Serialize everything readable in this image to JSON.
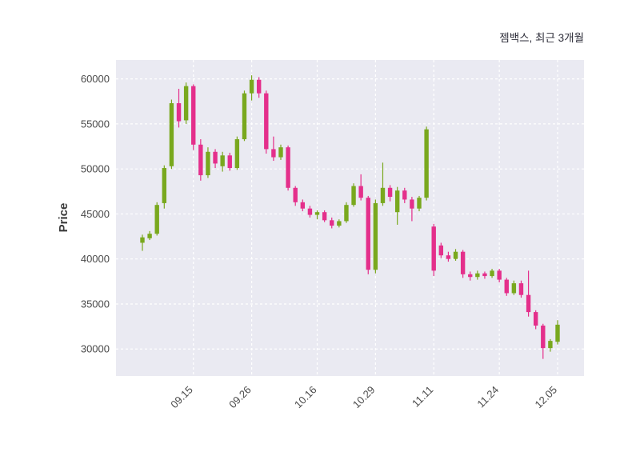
{
  "chart_data": {
    "type": "candlestick",
    "title": "젬백스, 최근 3개월",
    "ylabel": "Price",
    "grid": "on",
    "plot_bg_color": "#eaeaf2",
    "grid_color": "#ffffff",
    "up_color": "#79a81e",
    "down_color": "#e42f8b",
    "ylim": [
      27000,
      62100
    ],
    "y_ticks": [
      30000,
      35000,
      40000,
      45000,
      50000,
      55000,
      60000
    ],
    "x_tick_labels": [
      "09.15",
      "09.26",
      "10.16",
      "10.29",
      "11.11",
      "11.24",
      "12.05"
    ],
    "x_tick_indices": [
      7,
      15,
      24,
      32,
      40,
      49,
      57
    ],
    "candles_format": [
      "open",
      "high",
      "low",
      "close"
    ],
    "candles": [
      [
        41800,
        42700,
        40900,
        42400
      ],
      [
        42300,
        43100,
        42100,
        42800
      ],
      [
        42800,
        46300,
        42600,
        46000
      ],
      [
        46200,
        50400,
        45600,
        50100
      ],
      [
        50300,
        57700,
        50000,
        57300
      ],
      [
        57300,
        58900,
        54600,
        55300
      ],
      [
        55400,
        59600,
        55000,
        59200
      ],
      [
        59200,
        59400,
        52100,
        52700
      ],
      [
        52700,
        53300,
        48700,
        49300
      ],
      [
        49300,
        52400,
        49000,
        51900
      ],
      [
        51900,
        52200,
        50100,
        50600
      ],
      [
        50300,
        51900,
        49700,
        51500
      ],
      [
        51500,
        51800,
        49800,
        50100
      ],
      [
        50100,
        53600,
        49900,
        53300
      ],
      [
        53300,
        58700,
        53100,
        58400
      ],
      [
        58400,
        60400,
        57600,
        59900
      ],
      [
        59900,
        60200,
        57900,
        58400
      ],
      [
        58400,
        58700,
        51700,
        52200
      ],
      [
        52200,
        53600,
        50900,
        51300
      ],
      [
        51300,
        52700,
        51000,
        52400
      ],
      [
        52400,
        52600,
        47600,
        47900
      ],
      [
        47900,
        48100,
        45900,
        46300
      ],
      [
        46300,
        46600,
        45300,
        45600
      ],
      [
        45600,
        45900,
        44600,
        44900
      ],
      [
        44900,
        45400,
        44400,
        45200
      ],
      [
        45200,
        45400,
        44100,
        44300
      ],
      [
        44300,
        44600,
        43400,
        43700
      ],
      [
        43700,
        44400,
        43500,
        44200
      ],
      [
        44200,
        46300,
        44000,
        46000
      ],
      [
        46000,
        48400,
        45800,
        48100
      ],
      [
        48100,
        49400,
        46500,
        46800
      ],
      [
        46800,
        47000,
        38300,
        38800
      ],
      [
        38800,
        46600,
        38400,
        46200
      ],
      [
        46200,
        50700,
        45900,
        47900
      ],
      [
        47900,
        48200,
        46400,
        46900
      ],
      [
        45200,
        48000,
        43800,
        47600
      ],
      [
        47600,
        47900,
        46200,
        46600
      ],
      [
        46600,
        46900,
        44200,
        45600
      ],
      [
        45600,
        47000,
        45300,
        46800
      ],
      [
        46800,
        54700,
        46500,
        54400
      ],
      [
        43600,
        43900,
        38100,
        38700
      ],
      [
        41500,
        41800,
        40100,
        40400
      ],
      [
        40400,
        40800,
        39700,
        40000
      ],
      [
        40000,
        41100,
        39800,
        40800
      ],
      [
        40800,
        41000,
        37900,
        38300
      ],
      [
        38300,
        38600,
        37600,
        38000
      ],
      [
        38000,
        38700,
        37700,
        38400
      ],
      [
        38400,
        38600,
        37800,
        38100
      ],
      [
        38100,
        38900,
        37900,
        38700
      ],
      [
        38700,
        38900,
        37400,
        37700
      ],
      [
        37700,
        37900,
        35900,
        36200
      ],
      [
        36200,
        37600,
        36000,
        37300
      ],
      [
        37300,
        37600,
        35700,
        36000
      ],
      [
        36000,
        38700,
        33600,
        34100
      ],
      [
        34100,
        34300,
        32200,
        32600
      ],
      [
        32600,
        32800,
        28900,
        30100
      ],
      [
        30100,
        31100,
        29700,
        30900
      ],
      [
        30800,
        33200,
        30500,
        32700
      ]
    ]
  }
}
